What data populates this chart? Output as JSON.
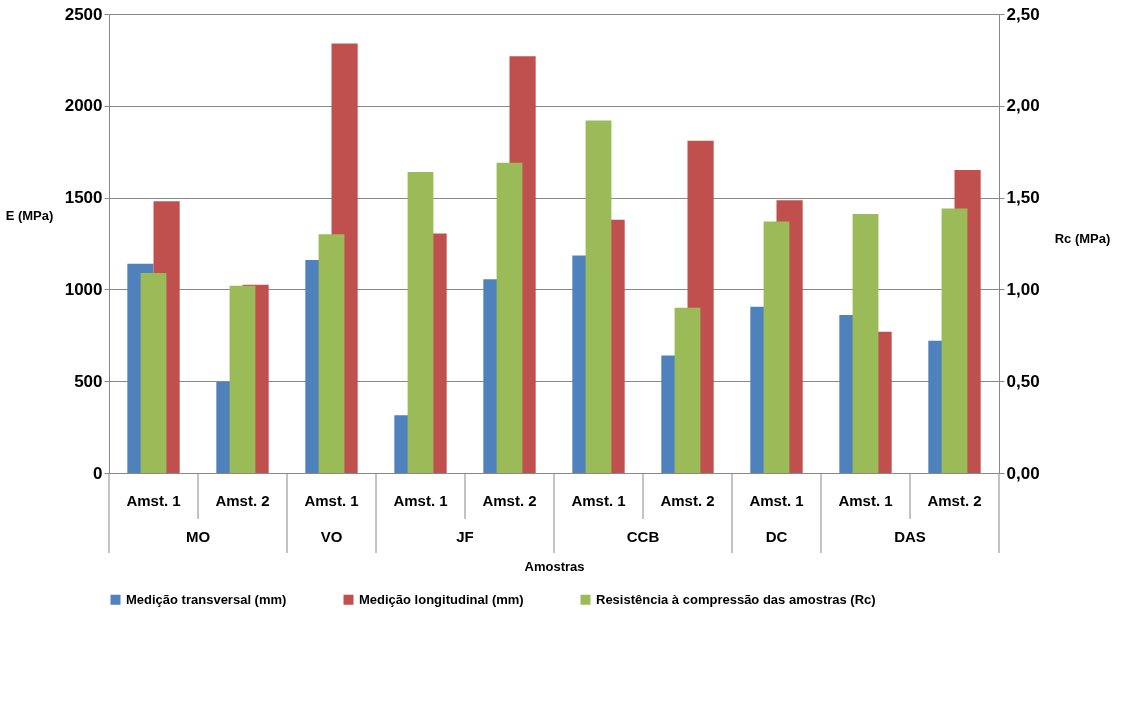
{
  "chart_data": {
    "type": "bar",
    "xlabel": "Amostras",
    "ylabel": "E (MPa)",
    "y2label": "Rc (MPa)",
    "categories": [
      "Amst. 1",
      "Amst. 2",
      "Amst. 1",
      "Amst. 1",
      "Amst. 2",
      "Amst. 1",
      "Amst. 2",
      "Amst. 1",
      "Amst. 1",
      "Amst. 2"
    ],
    "annotations": [
      "MO",
      "VO",
      "JF",
      "CCB",
      "DC",
      "DAS"
    ],
    "series": [
      {
        "name": "Medição transversal (mm)",
        "color": "#4f81bd",
        "values": [
          1140,
          495,
          1160,
          315,
          1055,
          1185,
          640,
          905,
          860,
          720
        ]
      },
      {
        "name": "Medição longitudinal (mm)",
        "color": "#c0504d",
        "values": [
          1480,
          1025,
          2340,
          1305,
          2270,
          1380,
          1810,
          1485,
          770,
          1650
        ]
      },
      {
        "name": "Resistência à compressão das amostras (Rc)",
        "color": "#9bbb59",
        "axis": "y2",
        "values": [
          1.09,
          1.02,
          1.3,
          1.64,
          1.69,
          1.92,
          0.9,
          1.37,
          1.41,
          1.44
        ]
      }
    ],
    "ylim": [
      0,
      2500
    ],
    "yticks": [
      0,
      500,
      {
        "value": 1000,
        "label": "1000"
      },
      {
        "value": 1500,
        "label": "1500"
      },
      {
        "value": 2000,
        "label": "2000"
      },
      {
        "value": 2500,
        "label": "2500"
      }
    ],
    "y2lim": [
      0,
      2.5
    ],
    "y2ticks": [
      {
        "value": 0,
        "label": "0,00"
      },
      {
        "value": 0.5,
        "label": "0,50"
      },
      {
        "value": 1,
        "label": "1,00"
      },
      {
        "value": 1.5,
        "label": "1,50"
      },
      {
        "value": 2,
        "label": "2,00"
      },
      {
        "value": 2.5,
        "label": "2,50"
      }
    ],
    "grid": "y",
    "legend": "bottom"
  }
}
